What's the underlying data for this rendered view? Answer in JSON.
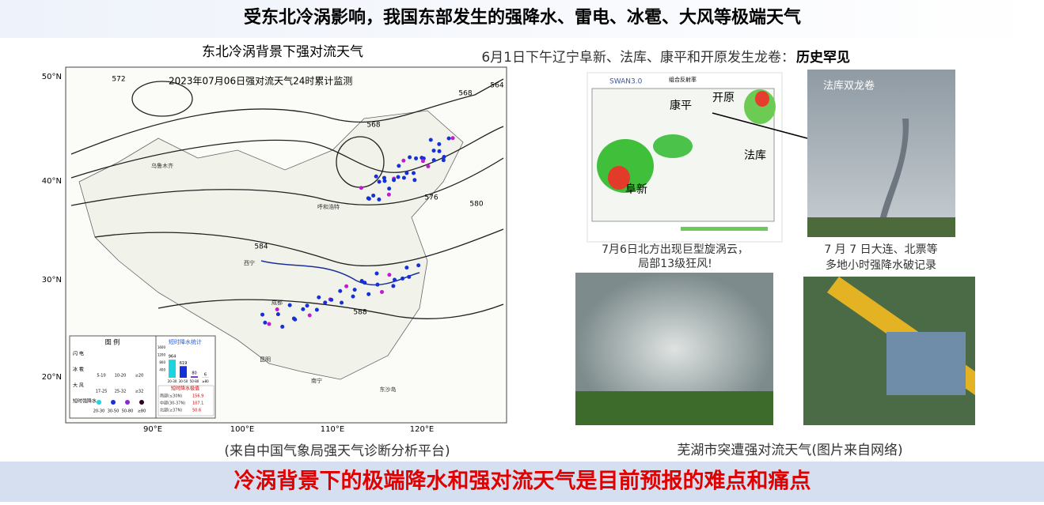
{
  "header": {
    "title": "受东北冷涡影响，我国东部发生的强降水、雷电、冰雹、大风等极端天气"
  },
  "left": {
    "heading": "东北冷涡背景下强对流天气",
    "source": "(来自中国气象局强天气诊断分析平台)",
    "map": {
      "title": "2023年07月06日强对流天气24时累计监测",
      "lat_labels": [
        "50°N",
        "40°N",
        "30°N",
        "20°N"
      ],
      "lon_labels": [
        "90°E",
        "100°E",
        "110°E",
        "120°E"
      ],
      "contour_labels": [
        "572",
        "564",
        "568",
        "568",
        "576",
        "580",
        "584",
        "588"
      ],
      "places": [
        "乌鲁木齐",
        "呼和浩特",
        "西宁",
        "成都",
        "昆明",
        "南宁",
        "东沙岛"
      ],
      "legend": {
        "title": "图 例",
        "rows": [
          "闪 电",
          "冰 雹",
          "大 风",
          "短时强降水"
        ],
        "hail_bins": [
          "5-10",
          "10-20",
          "≥20"
        ],
        "wind_bins": [
          "17-25",
          "25-32",
          "≥32"
        ],
        "rain_bins": [
          "20-30",
          "30-50",
          "50-80",
          "≥80"
        ]
      },
      "stats": {
        "title": "短时降水统计",
        "yticks": [
          400,
          800,
          1200,
          1600
        ],
        "values": [
          964,
          619,
          80,
          6
        ],
        "categories": [
          "20-30",
          "30-50",
          "50-80",
          "≥80"
        ],
        "extreme_title": "短时降水极值",
        "extremes": [
          [
            "南部(≤30N)",
            "156.9"
          ],
          [
            "中部(30-37N)",
            "107.1"
          ],
          [
            "北部(≥37N)",
            "50.6"
          ]
        ]
      }
    }
  },
  "right": {
    "heading": "6月1日下午辽宁阜新、法库、康平和开原发生龙卷：",
    "heading_emphasis": "历史罕见",
    "radar": {
      "logo": "SWAN3.0",
      "title": "组合反射率",
      "labels": [
        "康平",
        "开原",
        "法库",
        "阜新"
      ]
    },
    "tornado_label": "法库双龙卷",
    "caption_1": [
      "7月6日北方出现巨型旋涡云，",
      "局部13级狂风!"
    ],
    "caption_2": [
      "7 月 7 日大连、北票等",
      "多地小时强降水破记录"
    ],
    "bottom_caption": "芜湖市突遭强对流天气(图片来自网络)"
  },
  "footer": {
    "text": "冷涡背景下的极端降水和强对流天气是目前预报的难点和痛点"
  }
}
